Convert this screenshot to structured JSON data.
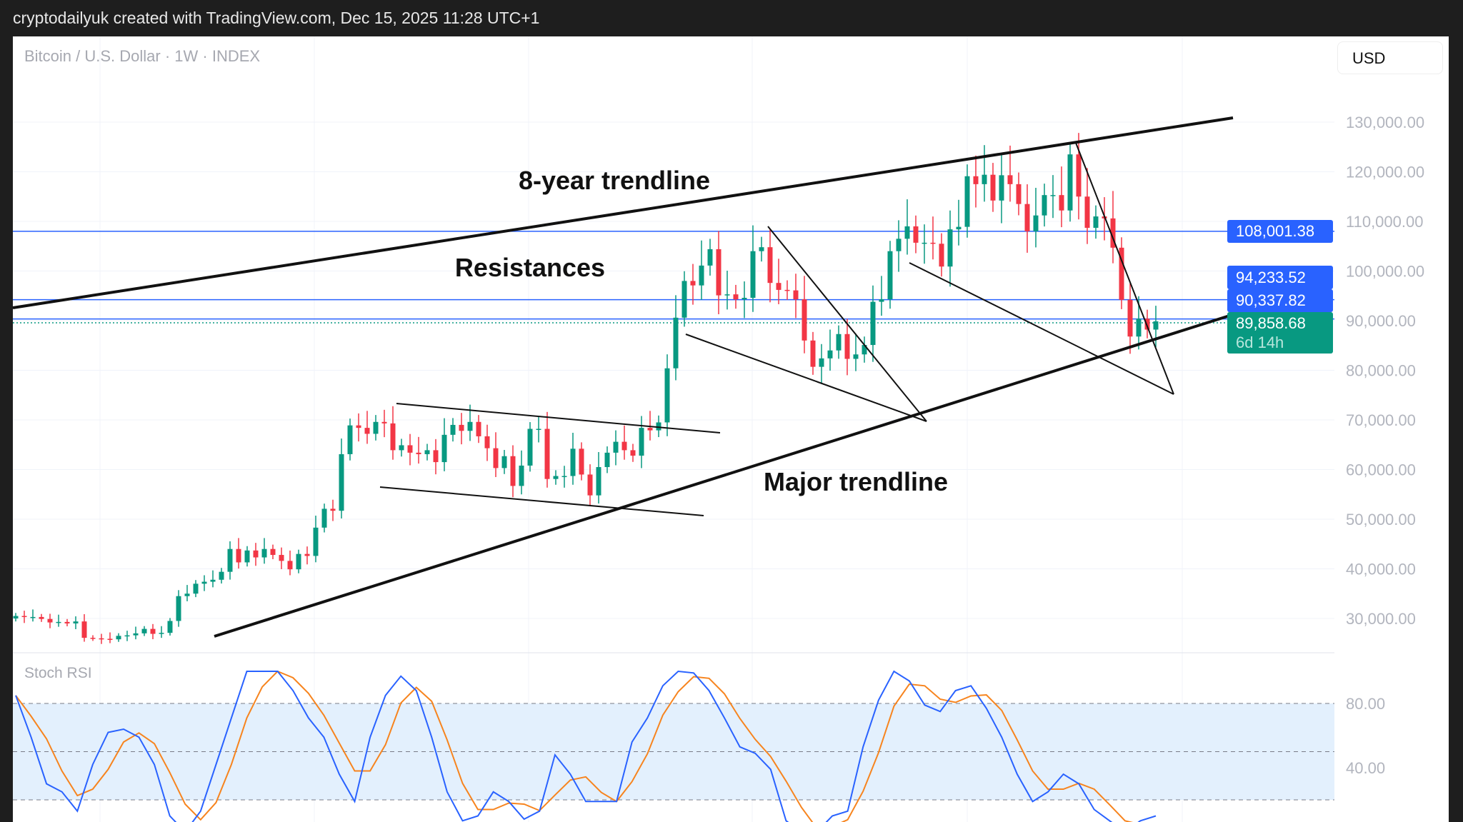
{
  "header": {
    "caption": "cryptodailyuk created with TradingView.com, Dec 15, 2025 11:28 UTC+1"
  },
  "symbol": {
    "title": "Bitcoin / U.S. Dollar · 1W · INDEX"
  },
  "currency_button": "USD",
  "price_labels": {
    "resistance_1": "108,001.38",
    "resistance_2": "94,233.52",
    "resistance_3": "90,337.82",
    "last_price": "89,858.68",
    "countdown": "6d 14h"
  },
  "annotations": {
    "eight_year": "8-year trendline",
    "resistances": "Resistances",
    "major": "Major trendline"
  },
  "colors": {
    "up": "#089981",
    "down": "#f23645",
    "line": "#2962ff",
    "k": "#2962ff",
    "d": "#f7841e",
    "band": "#e3f0fd"
  },
  "chart_data": {
    "type": "candlestick",
    "title": "Bitcoin / U.S. Dollar · 1W · INDEX",
    "y_ticks": [
      "130,000.00",
      "120,000.00",
      "110,000.00",
      "100,000.00",
      "90,000.00",
      "80,000.00",
      "70,000.00",
      "60,000.00",
      "50,000.00",
      "40,000.00",
      "30,000.00"
    ],
    "ylim": [
      20000,
      140000
    ],
    "first_open": 30000,
    "close": [
      30500,
      30300,
      30300,
      29900,
      29200,
      29300,
      29000,
      29400,
      26100,
      26000,
      25900,
      25800,
      26500,
      26600,
      27000,
      27900,
      26900,
      27100,
      29500,
      34500,
      35000,
      37000,
      37400,
      37800,
      39400,
      44000,
      41300,
      43700,
      42300,
      44000,
      42800,
      41600,
      39900,
      43000,
      42600,
      48300,
      52100,
      51700,
      63100,
      68900,
      68400,
      67200,
      69600,
      69300,
      63900,
      64900,
      63400,
      63100,
      63900,
      61500,
      67000,
      69000,
      67800,
      69600,
      66700,
      64300,
      60300,
      62700,
      56700,
      60800,
      68200,
      68200,
      58100,
      58700,
      58700,
      64200,
      59000,
      54800,
      60500,
      63400,
      65600,
      63900,
      62800,
      68400,
      67900,
      69500,
      80400,
      90600,
      98000,
      97100,
      101100,
      104400,
      95100,
      95300,
      94300,
      94600,
      104000,
      104800,
      97600,
      96200,
      96100,
      94300,
      86000,
      80700,
      82400,
      84000,
      87300,
      82300,
      83200,
      85100,
      93800,
      94300,
      104000,
      106500,
      109000,
      105700,
      105700,
      105500,
      100900,
      108400,
      108900,
      119100,
      117500,
      119400,
      114200,
      119300,
      117500,
      113500,
      108000,
      111200,
      115300,
      115300,
      112200,
      123500,
      115000,
      108700,
      111000,
      110600,
      104700,
      94200,
      86800,
      90400,
      88200,
      89858
    ],
    "horizontal_levels": [
      108001.38,
      94233.52,
      90337.82
    ],
    "last_price": 89858.68,
    "stoch_rsi": {
      "label": "Stoch RSI",
      "y_ticks": [
        "80.00",
        "40.00"
      ],
      "bands": [
        80,
        50,
        20
      ],
      "k": [
        85,
        59,
        30,
        25,
        13,
        42,
        62,
        64,
        59,
        42,
        10,
        0,
        13,
        42,
        71,
        100,
        100,
        100,
        88,
        71,
        59,
        36,
        19,
        59,
        85,
        97,
        88,
        59,
        25,
        7,
        10,
        25,
        19,
        8,
        13,
        48,
        36,
        19,
        19,
        19,
        56,
        71,
        91,
        100,
        99,
        88,
        71,
        53,
        49,
        39,
        7,
        0,
        0,
        10,
        13,
        53,
        82,
        100,
        94,
        79,
        75,
        88,
        91,
        77,
        59,
        36,
        19,
        25,
        36,
        30,
        14,
        7,
        0,
        7,
        10
      ]
    }
  }
}
